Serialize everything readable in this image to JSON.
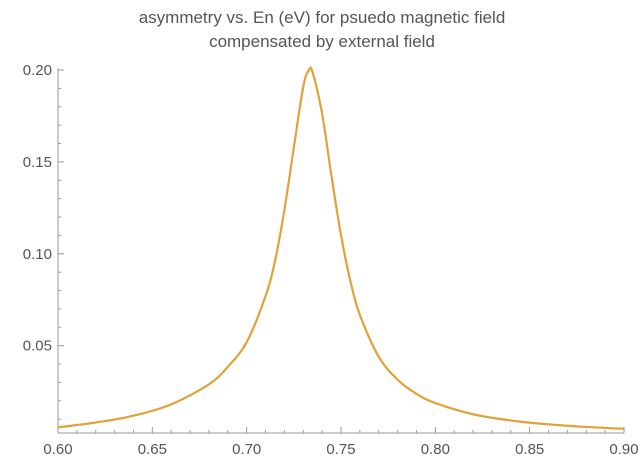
{
  "chart_data": {
    "type": "line",
    "title_lines": [
      "asymmetry vs. En (eV) for psuedo magnetic field",
      "compensated by external field"
    ],
    "xlabel": "",
    "ylabel": "",
    "xlim": [
      0.6,
      0.9
    ],
    "ylim": [
      0.0025,
      0.2
    ],
    "x_ticks": [
      "0.60",
      "0.65",
      "0.70",
      "0.75",
      "0.80",
      "0.85",
      "0.90"
    ],
    "y_ticks": [
      "0.05",
      "0.10",
      "0.15",
      "0.20"
    ],
    "grid": false,
    "line_color": "#e0a23a",
    "series": [
      {
        "x": [
          0.6,
          0.62,
          0.64,
          0.66,
          0.68,
          0.69,
          0.7,
          0.71,
          0.715,
          0.72,
          0.725,
          0.73,
          0.733,
          0.735,
          0.74,
          0.745,
          0.75,
          0.755,
          0.76,
          0.77,
          0.78,
          0.79,
          0.8,
          0.82,
          0.84,
          0.86,
          0.88,
          0.9
        ],
        "y": [
          0.0056,
          0.0082,
          0.0119,
          0.0181,
          0.029,
          0.0385,
          0.0519,
          0.077,
          0.096,
          0.1238,
          0.1578,
          0.1909,
          0.2,
          0.1986,
          0.1761,
          0.142,
          0.1102,
          0.085,
          0.0668,
          0.044,
          0.0315,
          0.0238,
          0.0188,
          0.0127,
          0.0093,
          0.0072,
          0.0058,
          0.0048
        ]
      }
    ]
  }
}
